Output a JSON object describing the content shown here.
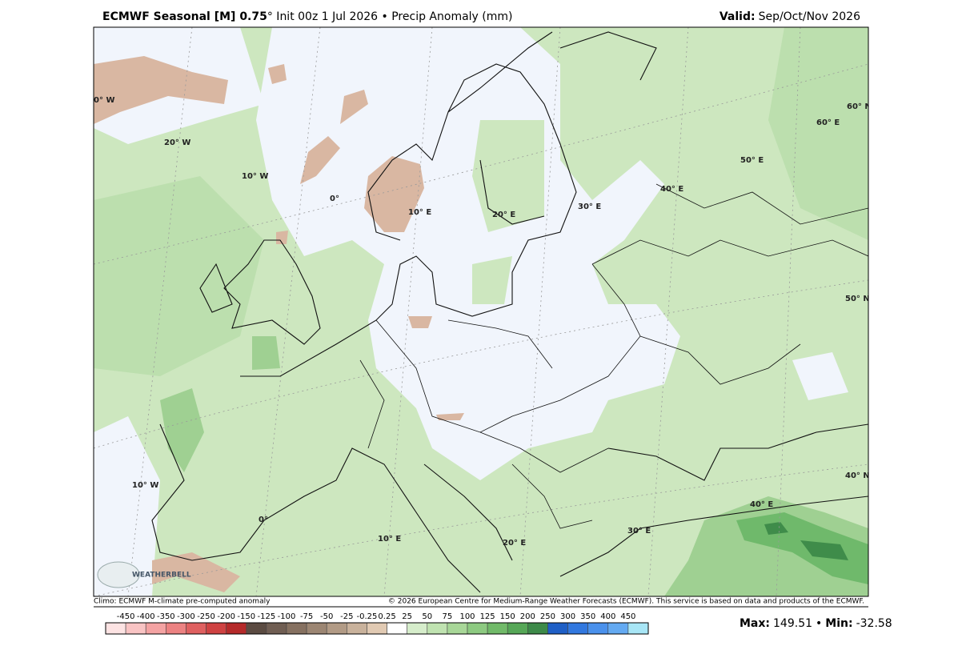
{
  "header": {
    "title_bold": "ECMWF Seasonal [M] 0.75",
    "title_rest": "° Init 00z 1 Jul 2026 • Precip Anomaly (mm)",
    "valid_label": "Valid:",
    "valid_value": "Sep/Oct/Nov 2026"
  },
  "map": {
    "graticule_labels": [
      "0° W",
      "20° W",
      "10° W",
      "0°",
      "10° E",
      "20° E",
      "30° E",
      "40° E",
      "50° E",
      "60° E",
      "60° N",
      "50° N",
      "40° N",
      "10° W",
      "0°",
      "10° E",
      "20° E",
      "30° E",
      "40° E"
    ],
    "logo": "WEATHERBELL"
  },
  "footer": {
    "left": "Climo: ECMWF M-climate pre-computed anomaly",
    "right": "© 2026 European Centre for Medium-Range Weather Forecasts (ECMWF). This service is based on data and products of the ECMWF."
  },
  "colorbar": {
    "labels": [
      -450,
      -400,
      -350,
      -300,
      -250,
      -200,
      -150,
      -125,
      -100,
      -75,
      -50,
      -25,
      -0.25,
      0.25,
      25,
      50,
      75,
      100,
      125,
      150,
      200,
      250,
      300,
      350,
      400,
      450
    ],
    "colors": [
      "#fde3e3",
      "#f9c4c4",
      "#f4a3a3",
      "#ec8282",
      "#df6060",
      "#cf4242",
      "#b52a2a",
      "#5b4b42",
      "#705e53",
      "#867161",
      "#9c8673",
      "#b29b86",
      "#c9b29c",
      "#e1cab3",
      "#ffffff",
      "#d6edcb",
      "#c0e3b1",
      "#a8d798",
      "#8dca81",
      "#71ba69",
      "#56a757",
      "#3d8a49",
      "#1f5fc6",
      "#3278df",
      "#4a91ec",
      "#64aaf2",
      "#a8e6f6"
    ]
  },
  "stats": {
    "max_label": "Max:",
    "max": 149.51,
    "min_label": "Min:",
    "min": -32.58
  }
}
